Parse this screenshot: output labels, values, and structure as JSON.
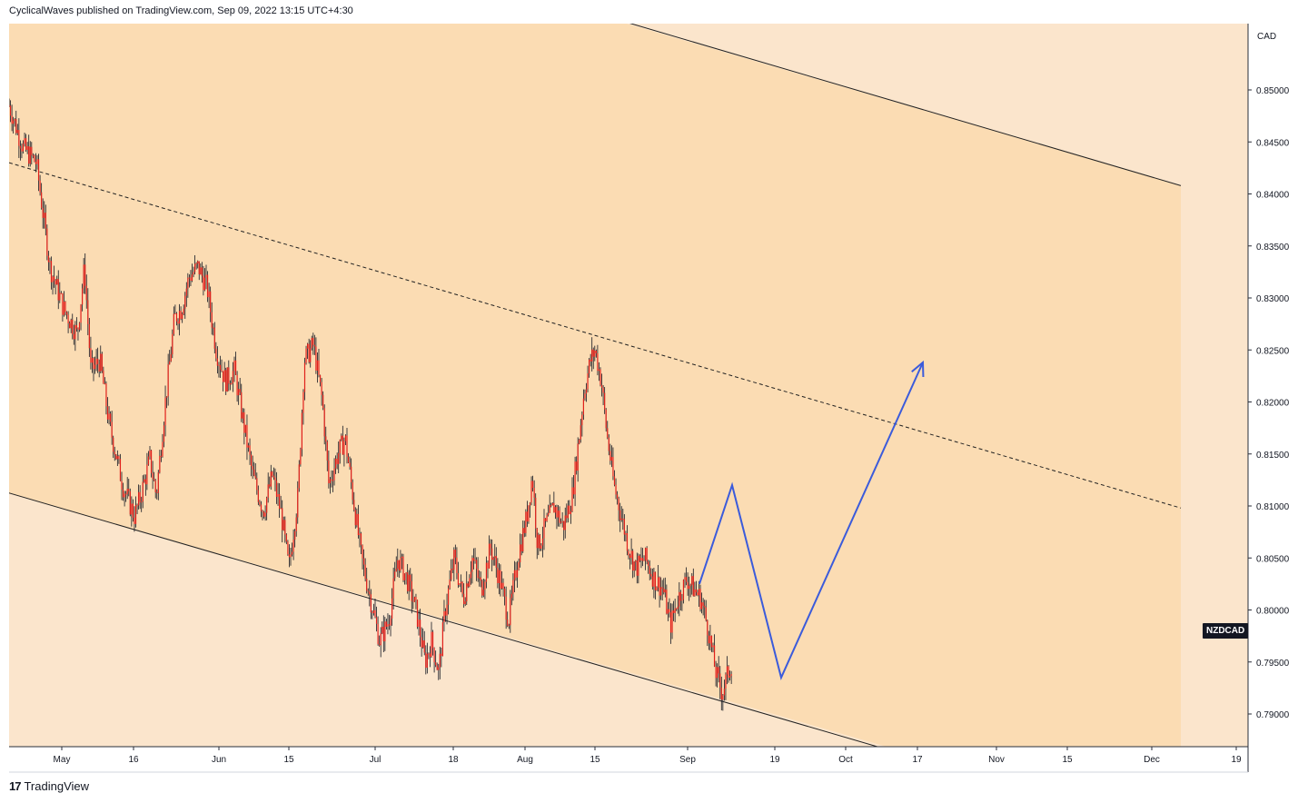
{
  "header": {
    "publisher_line": "CyclicalWaves published on TradingView.com, Sep 09, 2022 13:15 UTC+4:30"
  },
  "footer": {
    "brand": "TradingView"
  },
  "symbol_badge": "NZDCAD",
  "currency": "CAD",
  "colors": {
    "background": "#ffffff",
    "channel_fill": "#fbdcb3",
    "outer_fill": "#fbe5cc",
    "candle_color": "#e0201b",
    "wick_color": "#131722",
    "projection_color": "#3b5bdb",
    "channel_line": "#222222"
  },
  "chart_data": {
    "type": "candlestick",
    "symbol": "NZDCAD",
    "y_axis_title": "CAD",
    "ylim": [
      0.7865,
      0.8555
    ],
    "y_ticks": [
      "0.85000",
      "0.84500",
      "0.84000",
      "0.83500",
      "0.83000",
      "0.82500",
      "0.82000",
      "0.81500",
      "0.81000",
      "0.80500",
      "0.80000",
      "0.79500",
      "0.79000"
    ],
    "x_ticks": [
      "May",
      "16",
      "Jun",
      "15",
      "Jul",
      "18",
      "Aug",
      "15",
      "Sep",
      "19",
      "Oct",
      "17",
      "Nov",
      "15",
      "Dec",
      "19"
    ],
    "channel": {
      "lower": [
        [
          0,
          0.8115
        ],
        [
          976,
          0.7866
        ]
      ],
      "upper": [
        [
          690,
          0.8565
        ],
        [
          1300,
          0.8408
        ]
      ],
      "mid_dashed": [
        [
          10,
          0.843
        ],
        [
          1300,
          0.8098
        ]
      ]
    },
    "price_path": [
      [
        10,
        0.8485
      ],
      [
        25,
        0.8445
      ],
      [
        40,
        0.843
      ],
      [
        55,
        0.833
      ],
      [
        70,
        0.829
      ],
      [
        85,
        0.8265
      ],
      [
        93,
        0.833
      ],
      [
        100,
        0.823
      ],
      [
        110,
        0.824
      ],
      [
        120,
        0.818
      ],
      [
        135,
        0.812
      ],
      [
        148,
        0.809
      ],
      [
        155,
        0.811
      ],
      [
        165,
        0.8145
      ],
      [
        172,
        0.811
      ],
      [
        182,
        0.82
      ],
      [
        192,
        0.828
      ],
      [
        200,
        0.829
      ],
      [
        208,
        0.832
      ],
      [
        218,
        0.833
      ],
      [
        228,
        0.831
      ],
      [
        238,
        0.825
      ],
      [
        248,
        0.822
      ],
      [
        258,
        0.823
      ],
      [
        268,
        0.818
      ],
      [
        278,
        0.813
      ],
      [
        290,
        0.8095
      ],
      [
        300,
        0.813
      ],
      [
        310,
        0.809
      ],
      [
        318,
        0.804
      ],
      [
        328,
        0.811
      ],
      [
        335,
        0.824
      ],
      [
        345,
        0.8255
      ],
      [
        355,
        0.82
      ],
      [
        362,
        0.812
      ],
      [
        372,
        0.815
      ],
      [
        380,
        0.8165
      ],
      [
        390,
        0.81
      ],
      [
        398,
        0.805
      ],
      [
        408,
        0.801
      ],
      [
        418,
        0.797
      ],
      [
        428,
        0.799
      ],
      [
        438,
        0.805
      ],
      [
        448,
        0.803
      ],
      [
        458,
        0.8
      ],
      [
        468,
        0.795
      ],
      [
        475,
        0.797
      ],
      [
        483,
        0.794
      ],
      [
        490,
        0.8
      ],
      [
        500,
        0.805
      ],
      [
        510,
        0.801
      ],
      [
        520,
        0.805
      ],
      [
        530,
        0.802
      ],
      [
        540,
        0.806
      ],
      [
        550,
        0.803
      ],
      [
        560,
        0.799
      ],
      [
        570,
        0.805
      ],
      [
        580,
        0.809
      ],
      [
        586,
        0.813
      ],
      [
        592,
        0.806
      ],
      [
        600,
        0.808
      ],
      [
        610,
        0.81
      ],
      [
        620,
        0.808
      ],
      [
        630,
        0.811
      ],
      [
        638,
        0.817
      ],
      [
        643,
        0.821
      ],
      [
        650,
        0.824
      ],
      [
        655,
        0.825
      ],
      [
        662,
        0.822
      ],
      [
        668,
        0.817
      ],
      [
        676,
        0.812
      ],
      [
        684,
        0.809
      ],
      [
        692,
        0.806
      ],
      [
        700,
        0.804
      ],
      [
        710,
        0.805
      ],
      [
        720,
        0.803
      ],
      [
        730,
        0.802
      ],
      [
        738,
        0.7985
      ],
      [
        746,
        0.801
      ],
      [
        756,
        0.803
      ],
      [
        764,
        0.802
      ],
      [
        772,
        0.801
      ],
      [
        780,
        0.798
      ],
      [
        788,
        0.794
      ],
      [
        795,
        0.792
      ],
      [
        800,
        0.7935
      ],
      [
        806,
        0.795
      ]
    ],
    "projection": [
      [
        770,
        0.8025
      ],
      [
        806,
        0.812
      ],
      [
        860,
        0.7935
      ],
      [
        1016,
        0.8238
      ]
    ]
  }
}
